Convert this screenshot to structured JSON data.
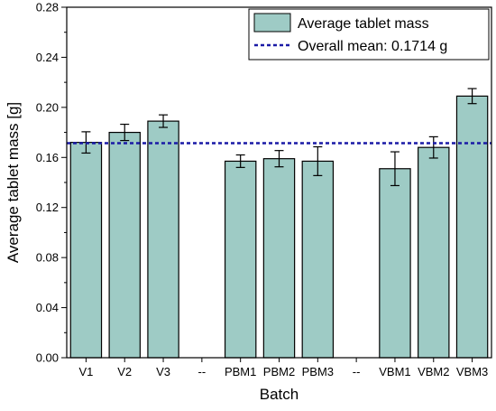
{
  "chart_data": {
    "type": "bar",
    "categories": [
      "V1",
      "V2",
      "V3",
      "--",
      "PBM1",
      "PBM2",
      "PBM3",
      "--",
      "VBM1",
      "VBM2",
      "VBM3"
    ],
    "series": [
      {
        "name": "Average tablet mass",
        "values": [
          0.172,
          0.18,
          0.189,
          null,
          0.157,
          0.159,
          0.157,
          null,
          0.151,
          0.168,
          0.209
        ],
        "errors": [
          0.0085,
          0.0065,
          0.005,
          null,
          0.005,
          0.0065,
          0.0115,
          null,
          0.0135,
          0.0085,
          0.006
        ],
        "color": "#9ecbc5"
      }
    ],
    "reference_line": {
      "label": "Overall mean: 0.1714 g",
      "value": 0.1714,
      "color": "#1a1aa6",
      "style": "dashed"
    },
    "xlabel": "Batch",
    "ylabel": "Average tablet mass [g]",
    "ylim": [
      0,
      0.28
    ],
    "yticks": [
      "0.00",
      "0.04",
      "0.08",
      "0.12",
      "0.16",
      "0.20",
      "0.24",
      "0.28"
    ],
    "legend_position": "top-right",
    "grid": false
  }
}
